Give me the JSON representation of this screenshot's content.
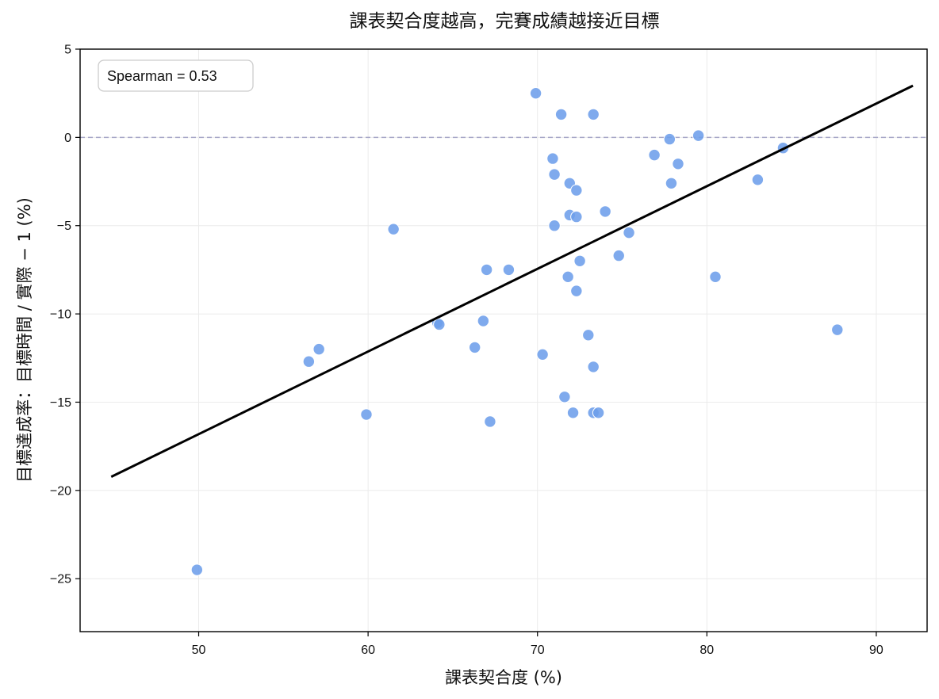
{
  "chart_data": {
    "type": "scatter",
    "title": "課表契合度越高，完賽成績越接近目標",
    "xlabel": "課表契合度 (%)",
    "ylabel": "目標達成率：目標時間 / 實際 − 1 (%)",
    "xlim": [
      43,
      93
    ],
    "ylim": [
      -28,
      5
    ],
    "xticks": [
      50,
      60,
      70,
      80,
      90
    ],
    "yticks": [
      5,
      0,
      -5,
      -10,
      -15,
      -20,
      -25
    ],
    "grid": true,
    "reference_line_y": 0,
    "annotation": "Spearman = 0.53",
    "fit_line": {
      "x": [
        44.9,
        92.1
      ],
      "y": [
        -19.2,
        2.9
      ]
    },
    "colors": {
      "points": "#6d9eeb",
      "fit_line": "#000000",
      "reference_line": "#a8a8c8",
      "grid": "#ebebeb"
    },
    "points": [
      {
        "x": 49.9,
        "y": -24.5
      },
      {
        "x": 56.5,
        "y": -12.7
      },
      {
        "x": 57.1,
        "y": -12.0
      },
      {
        "x": 59.9,
        "y": -15.7
      },
      {
        "x": 61.5,
        "y": -5.2
      },
      {
        "x": 64.1,
        "y": -10.5
      },
      {
        "x": 64.2,
        "y": -10.6
      },
      {
        "x": 66.3,
        "y": -11.9
      },
      {
        "x": 66.8,
        "y": -10.4
      },
      {
        "x": 67.0,
        "y": -7.5
      },
      {
        "x": 67.2,
        "y": -16.1
      },
      {
        "x": 68.3,
        "y": -7.5
      },
      {
        "x": 69.9,
        "y": 2.5
      },
      {
        "x": 70.3,
        "y": -12.3
      },
      {
        "x": 70.9,
        "y": -1.2
      },
      {
        "x": 71.0,
        "y": -2.1
      },
      {
        "x": 71.0,
        "y": -5.0
      },
      {
        "x": 71.4,
        "y": 1.3
      },
      {
        "x": 71.6,
        "y": -14.7
      },
      {
        "x": 71.8,
        "y": -7.9
      },
      {
        "x": 71.9,
        "y": -2.6
      },
      {
        "x": 71.9,
        "y": -4.4
      },
      {
        "x": 72.1,
        "y": -15.6
      },
      {
        "x": 72.3,
        "y": -3.0
      },
      {
        "x": 72.3,
        "y": -4.5
      },
      {
        "x": 72.3,
        "y": -8.7
      },
      {
        "x": 72.5,
        "y": -7.0
      },
      {
        "x": 73.0,
        "y": -11.2
      },
      {
        "x": 73.3,
        "y": 1.3
      },
      {
        "x": 73.3,
        "y": -13.0
      },
      {
        "x": 73.3,
        "y": -15.6
      },
      {
        "x": 73.6,
        "y": -15.6
      },
      {
        "x": 74.0,
        "y": -4.2
      },
      {
        "x": 74.8,
        "y": -6.7
      },
      {
        "x": 75.4,
        "y": -5.4
      },
      {
        "x": 76.9,
        "y": -1.0
      },
      {
        "x": 77.8,
        "y": -0.1
      },
      {
        "x": 77.9,
        "y": -2.6
      },
      {
        "x": 78.3,
        "y": -1.5
      },
      {
        "x": 79.5,
        "y": 0.1
      },
      {
        "x": 80.5,
        "y": -7.9
      },
      {
        "x": 83.0,
        "y": -2.4
      },
      {
        "x": 84.5,
        "y": -0.6
      },
      {
        "x": 87.7,
        "y": -10.9
      }
    ]
  }
}
